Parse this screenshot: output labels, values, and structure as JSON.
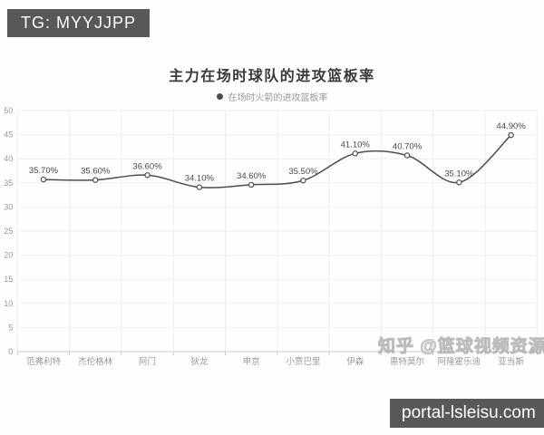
{
  "badges": {
    "tg": "TG: MYYJJPP",
    "portal": "portal-lsleisu.com"
  },
  "watermark": "知乎 @篮球视频资源",
  "chart_data": {
    "type": "line",
    "title": "主力在场时球队的进攻篮板率",
    "legend": [
      "在场时火箭的进攻篮板率"
    ],
    "legend_position": "top",
    "categories": [
      "范弗利特",
      "杰伦格林",
      "阿门",
      "狄龙",
      "申京",
      "小贾巴里",
      "伊森",
      "惠特莫尔",
      "阿隆霍乐迪",
      "亚当斯"
    ],
    "values": [
      35.7,
      35.6,
      36.6,
      34.1,
      34.6,
      35.5,
      41.1,
      40.7,
      35.1,
      44.9
    ],
    "point_labels": [
      "35.70%",
      "35.60%",
      "36.60%",
      "34.10%",
      "34.60%",
      "35.50%",
      "41.10%",
      "40.70%",
      "35.10%",
      "44.90%"
    ],
    "xlabel": "",
    "ylabel": "",
    "ylim": [
      0,
      50
    ],
    "ytick_step": 5,
    "grid": true,
    "smooth": true,
    "colors": {
      "line": "#4d4d4d",
      "marker_fill": "#ffffff",
      "grid": "#efefef",
      "axis": "#cccccc",
      "tick_label": "#999999",
      "point_label": "#4a4a4a",
      "title": "#3a3a3a",
      "legend_text": "#999999",
      "badge_bg": "#58585a",
      "badge_text": "#ffffff",
      "watermark": "#c8c8c8"
    }
  }
}
